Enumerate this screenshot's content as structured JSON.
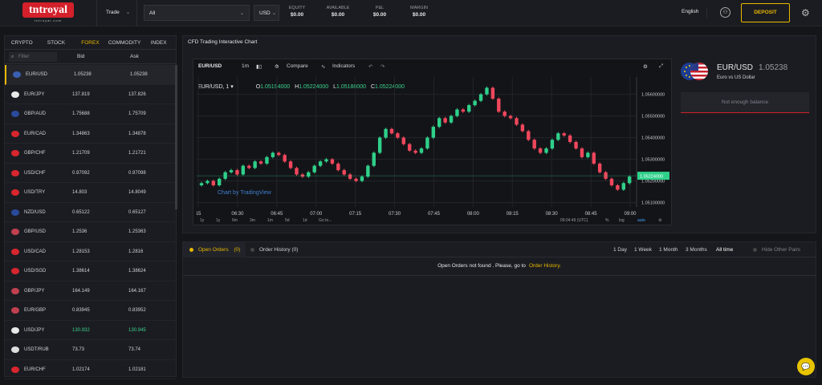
{
  "header": {
    "logo_text": "tntroyal",
    "logo_sub": "tntroyal.com",
    "trade_label": "Trade",
    "account_select": "All",
    "currency_select": "USD",
    "stats": [
      {
        "label": "EQUITY",
        "value": "$0.00"
      },
      {
        "label": "AVAILABLE",
        "value": "$0.00"
      },
      {
        "label": "P&L",
        "value": "$0.00"
      },
      {
        "label": "MARGIN",
        "value": "$0.00"
      }
    ],
    "language": "English",
    "deposit_label": "DEPOSIT"
  },
  "markets": {
    "categories": [
      "CRYPTO",
      "STOCK",
      "FOREX",
      "COMMODITY",
      "INDEX"
    ],
    "active_category": "FOREX",
    "filter_placeholder": "Filter",
    "bid_header": "Bid",
    "ask_header": "Ask",
    "rows": [
      {
        "sym": "EUR/USD",
        "bid": "1.05238",
        "ask": "1.05238",
        "flag": "#3a5fb0",
        "selected": true
      },
      {
        "sym": "EUR/JPY",
        "bid": "137.819",
        "ask": "137.826",
        "flag": "#e9e9e9"
      },
      {
        "sym": "GBP/AUD",
        "bid": "1.75688",
        "ask": "1.75709",
        "flag": "#2a4a9c"
      },
      {
        "sym": "EUR/CAD",
        "bid": "1.34863",
        "ask": "1.34878",
        "flag": "#d8262e"
      },
      {
        "sym": "GBP/CHF",
        "bid": "1.21709",
        "ask": "1.21721",
        "flag": "#d8262e"
      },
      {
        "sym": "USD/CHF",
        "bid": "0.97092",
        "ask": "0.97098",
        "flag": "#d8262e"
      },
      {
        "sym": "USD/TRY",
        "bid": "14.803",
        "ask": "14.8049",
        "flag": "#d8262e"
      },
      {
        "sym": "NZD/USD",
        "bid": "0.65122",
        "ask": "0.65127",
        "flag": "#2a4a9c"
      },
      {
        "sym": "GBP/USD",
        "bid": "1.2536",
        "ask": "1.25363",
        "flag": "#c04050"
      },
      {
        "sym": "USD/CAD",
        "bid": "1.28153",
        "ask": "1.2816",
        "flag": "#d8262e"
      },
      {
        "sym": "USD/SGD",
        "bid": "1.38614",
        "ask": "1.38624",
        "flag": "#d8262e"
      },
      {
        "sym": "GBP/JPY",
        "bid": "164.149",
        "ask": "164.167",
        "flag": "#c04050"
      },
      {
        "sym": "EUR/GBP",
        "bid": "0.83945",
        "ask": "0.83952",
        "flag": "#c04050"
      },
      {
        "sym": "USD/JPY",
        "bid": "130.932",
        "ask": "130.945",
        "flag": "#e9e9e9",
        "green": true
      },
      {
        "sym": "USDT/RUB",
        "bid": "73.73",
        "ask": "73.74",
        "flag": "#dddddd"
      },
      {
        "sym": "EUR/CHF",
        "bid": "1.02174",
        "ask": "1.02181",
        "flag": "#d8262e"
      }
    ]
  },
  "chart_panel": {
    "title": "CFD Trading Interactive Chart",
    "symbol": "EUR/USD",
    "interval": "1m",
    "compare_label": "Compare",
    "indicators_label": "Indicators",
    "legend_symbol": "EUR/USD, 1",
    "ohlc": {
      "o": "1.05194000",
      "h": "1.05224000",
      "l": "1.05188000",
      "c": "1.05224000"
    },
    "watermark": "Chart by TradingView",
    "ranges": [
      "1y",
      "1y",
      "6m",
      "3m",
      "1m",
      "5d",
      "1d",
      "Go to..."
    ],
    "time_readout": "09:04:49 (UTC)",
    "pct": "%",
    "log": "log",
    "auto": "auto",
    "info": {
      "symbol": "EUR/USD",
      "price": "1.05238",
      "name": "Euro vs US Dollar"
    },
    "balance_msg": "Not enough balance"
  },
  "chart_data": {
    "type": "candlestick",
    "x_tick_labels": [
      "15",
      "06:30",
      "06:45",
      "07:00",
      "07:15",
      "07:30",
      "07:45",
      "08:00",
      "08:15",
      "08:30",
      "08:45",
      "09:00"
    ],
    "y_tick_labels": [
      "1.05600000",
      "1.05500000",
      "1.05400000",
      "1.05300000",
      "1.05200000",
      "1.05100000"
    ],
    "ylim": [
      1.0508,
      1.0568
    ],
    "last_price_label": "1.05224000",
    "close_path": [
      1.0519,
      1.052,
      1.0518,
      1.0521,
      1.0524,
      1.0525,
      1.0523,
      1.0527,
      1.0526,
      1.0529,
      1.0528,
      1.0531,
      1.0533,
      1.0532,
      1.0529,
      1.0526,
      1.0523,
      1.0522,
      1.0524,
      1.0527,
      1.0529,
      1.053,
      1.0528,
      1.0525,
      1.0523,
      1.0521,
      1.052,
      1.0522,
      1.0527,
      1.0533,
      1.054,
      1.0544,
      1.0542,
      1.054,
      1.0537,
      1.0534,
      1.0533,
      1.0535,
      1.054,
      1.0545,
      1.0549,
      1.0547,
      1.055,
      1.0553,
      1.0552,
      1.0555,
      1.0557,
      1.056,
      1.0563,
      1.0558,
      1.0552,
      1.055,
      1.0549,
      1.0546,
      1.0543,
      1.0539,
      1.0535,
      1.0533,
      1.0535,
      1.0539,
      1.0542,
      1.0541,
      1.0538,
      1.0535,
      1.0531,
      1.0533,
      1.0528,
      1.0524,
      1.0521,
      1.0518,
      1.0516,
      1.0519,
      1.0522
    ]
  },
  "orders": {
    "open_tab": "Open Orders",
    "open_count": "(0)",
    "history_tab": "Order History (0)",
    "ranges": [
      "1 Day",
      "1 Week",
      "1 Month",
      "3 Months",
      "All time"
    ],
    "active_range": "All time",
    "hide_other": "Hide Other Pairs",
    "empty_msg": "Open Orders not found . Please, go to",
    "empty_link": "Order History."
  }
}
